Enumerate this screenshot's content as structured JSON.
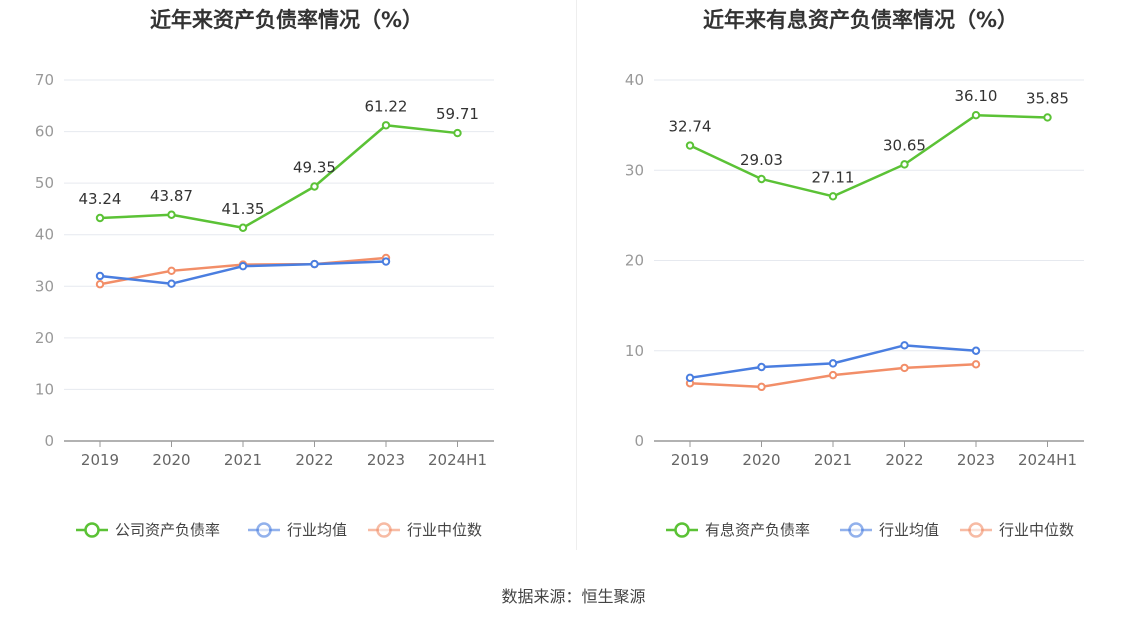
{
  "source_text": "数据来源：恒生聚源",
  "chart_data": [
    {
      "type": "line",
      "title": "近年来资产负债率情况（%）",
      "categories": [
        "2019",
        "2020",
        "2021",
        "2022",
        "2023",
        "2024H1"
      ],
      "ylim": [
        0,
        70
      ],
      "yticks": [
        0,
        10,
        20,
        30,
        40,
        50,
        60,
        70
      ],
      "ytick_labels": [
        "0",
        "10",
        "20",
        "30",
        "40",
        "50",
        "60",
        "70"
      ],
      "grid": true,
      "legend_position": "bottom",
      "series": [
        {
          "name": "公司资产负债率",
          "color": "#5bc236",
          "values": [
            43.24,
            43.87,
            41.35,
            49.35,
            61.22,
            59.71
          ],
          "labels": [
            "43.24",
            "43.87",
            "41.35",
            "49.35",
            "61.22",
            "59.71"
          ]
        },
        {
          "name": "行业均值",
          "color": "#4a7ee0",
          "values": [
            32.0,
            30.5,
            33.9,
            34.3,
            34.8,
            null
          ]
        },
        {
          "name": "行业中位数",
          "color": "#f28e68",
          "values": [
            30.4,
            33.0,
            34.2,
            34.3,
            35.5,
            null
          ]
        }
      ]
    },
    {
      "type": "line",
      "title": "近年来有息资产负债率情况（%）",
      "categories": [
        "2019",
        "2020",
        "2021",
        "2022",
        "2023",
        "2024H1"
      ],
      "ylim": [
        0,
        40
      ],
      "yticks": [
        0,
        10,
        20,
        30,
        40
      ],
      "ytick_labels": [
        "0",
        "10",
        "20",
        "30",
        "40"
      ],
      "grid": true,
      "legend_position": "bottom",
      "series": [
        {
          "name": "有息资产负债率",
          "color": "#5bc236",
          "values": [
            32.74,
            29.03,
            27.11,
            30.65,
            36.1,
            35.85
          ],
          "labels": [
            "32.74",
            "29.03",
            "27.11",
            "30.65",
            "36.10",
            "35.85"
          ]
        },
        {
          "name": "行业均值",
          "color": "#4a7ee0",
          "values": [
            7.0,
            8.2,
            8.6,
            10.6,
            10.0,
            null
          ]
        },
        {
          "name": "行业中位数",
          "color": "#f28e68",
          "values": [
            6.4,
            6.0,
            7.3,
            8.1,
            8.5,
            null
          ]
        }
      ]
    }
  ]
}
